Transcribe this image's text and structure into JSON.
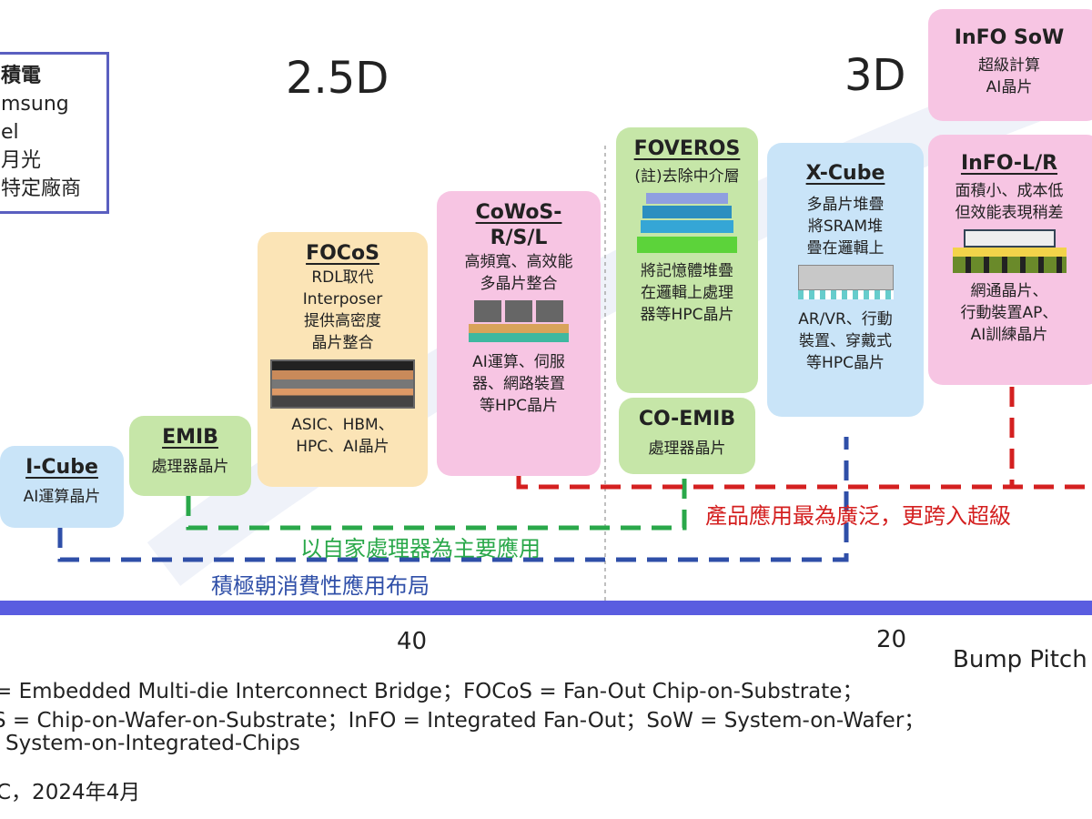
{
  "legend": {
    "lines": [
      "積電",
      "msung",
      "el",
      "月光",
      "特定廠商"
    ],
    "border_color": "#5a5fc0"
  },
  "headings": {
    "d25": "2.5D",
    "d3": "3D"
  },
  "boxes": {
    "icube": {
      "title": "I-Cube",
      "lines": [
        "AI運算晶片"
      ],
      "color": "#c9e4f8"
    },
    "emib": {
      "title": "EMIB",
      "lines": [
        "處理器晶片"
      ],
      "color": "#c6e6a8"
    },
    "focos": {
      "title": "FOCoS",
      "lines": [
        "RDL取代",
        "Interposer",
        "提供高密度",
        "晶片整合"
      ],
      "lines2": [
        "ASIC、HBM、",
        "HPC、AI晶片"
      ],
      "color": "#fbe4b6"
    },
    "cowos": {
      "title": "CoWoS-",
      "title2": "R/S/L",
      "lines": [
        "高頻寬、高效能",
        "多晶片整合"
      ],
      "lines2": [
        "AI運算、伺服",
        "器、網路裝置",
        "等HPC晶片"
      ],
      "color": "#f7c5e3"
    },
    "foveros": {
      "title": "FOVEROS",
      "lines": [
        "(註)去除中介層"
      ],
      "lines2": [
        "將記憶體堆疊",
        "在邏輯上處理",
        "器等HPC晶片"
      ],
      "color": "#c6e6a8"
    },
    "coemib": {
      "title": "CO-EMIB",
      "lines": [
        "處理器晶片"
      ],
      "color": "#c6e6a8"
    },
    "xcube": {
      "title": "X-Cube",
      "lines": [
        "多晶片堆疊",
        "將SRAM堆",
        "疊在邏輯上"
      ],
      "lines2": [
        "AR/VR、行動",
        "裝置、穿戴式",
        "等HPC晶片"
      ],
      "color": "#c9e4f8"
    },
    "infosow": {
      "title": "InFO SoW",
      "lines": [
        "超級計算",
        "AI晶片"
      ],
      "color": "#f7c5e3"
    },
    "infolr": {
      "title": "InFO-L/R",
      "lines": [
        "面積小、成本低",
        "但效能表現稍差"
      ],
      "lines2": [
        "網通晶片、",
        "行動裝置AP、",
        "AI訓練晶片"
      ],
      "color": "#f7c5e3"
    }
  },
  "annotations": {
    "green": {
      "text": "以自家處理器為主要應用",
      "color": "#2aa84a"
    },
    "blue": {
      "text": "積極朝消費性應用布局",
      "color": "#2f4fa8"
    },
    "red": {
      "text": "產品應用最為廣泛，更跨入超級",
      "color": "#d42020"
    }
  },
  "axis": {
    "ticks": [
      "40",
      "20"
    ],
    "label": "Bump Pitch",
    "color": "#5a5de0"
  },
  "footnotes": [
    "= Embedded Multi-die Interconnect Bridge；FOCoS = Fan-Out Chip-on-Substrate；",
    "S = Chip-on-Wafer-on-Substrate；InFO = Integrated Fan-Out；SoW = System-on-Wafer；",
    "System-on-Integrated-Chips",
    "C，2024年4月"
  ]
}
